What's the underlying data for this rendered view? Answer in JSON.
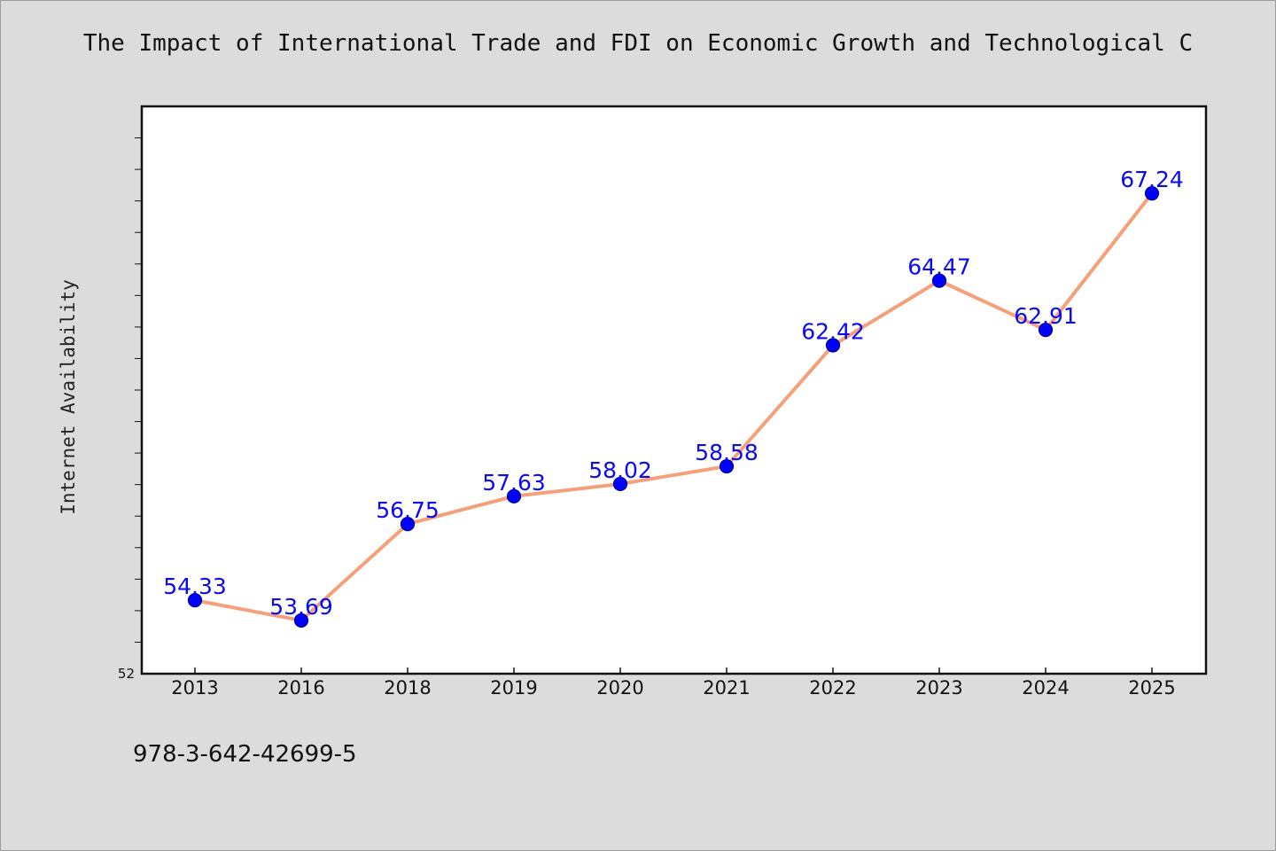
{
  "chart_data": {
    "type": "line",
    "title": "The Impact of International Trade and FDI on Economic Growth and Technological C",
    "xlabel": "",
    "ylabel": "Internet Availability",
    "categories": [
      "2013",
      "2016",
      "2018",
      "2019",
      "2020",
      "2021",
      "2022",
      "2023",
      "2024",
      "2025"
    ],
    "series": [
      {
        "values": [
          54.33,
          53.69,
          56.75,
          57.63,
          58.02,
          58.58,
          62.42,
          64.47,
          62.91,
          67.24
        ],
        "labels": [
          "54.33",
          "53.69",
          "56.75",
          "57.63",
          "58.02",
          "58.58",
          "62.42",
          "64.47",
          "62.91",
          "67.24"
        ],
        "line_color": "#f4a07a",
        "marker_color": "#0000ff"
      }
    ],
    "ylim": [
      52,
      70
    ],
    "y_tick_labels": [
      "52"
    ],
    "grid": false,
    "legend": "none"
  },
  "footer": {
    "isbn": "978-3-642-42699-5"
  }
}
